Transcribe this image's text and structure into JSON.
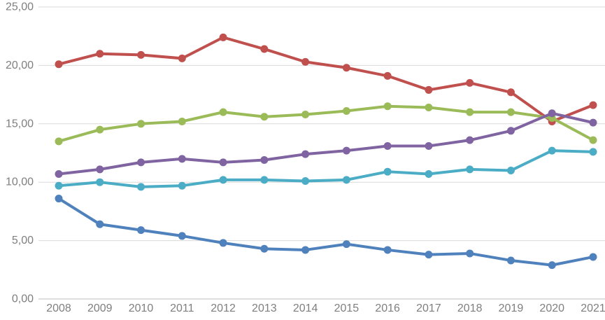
{
  "chart_data": {
    "type": "line",
    "title": "",
    "xlabel": "",
    "ylabel": "",
    "categories": [
      "2008",
      "2009",
      "2010",
      "2011",
      "2012",
      "2013",
      "2014",
      "2015",
      "2016",
      "2017",
      "2018",
      "2019",
      "2020",
      "2021"
    ],
    "series": [
      {
        "name": "blue",
        "color": "#4F81BD",
        "values": [
          8.6,
          6.4,
          5.9,
          5.4,
          4.8,
          4.3,
          4.2,
          4.7,
          4.2,
          3.8,
          3.9,
          3.3,
          2.9,
          3.6
        ]
      },
      {
        "name": "red",
        "color": "#C0504D",
        "values": [
          20.1,
          21.0,
          20.9,
          20.6,
          22.4,
          21.4,
          20.3,
          19.8,
          19.1,
          17.9,
          18.5,
          17.7,
          15.2,
          16.6
        ]
      },
      {
        "name": "green",
        "color": "#9BBB59",
        "values": [
          13.5,
          14.5,
          15.0,
          15.2,
          16.0,
          15.6,
          15.8,
          16.1,
          16.5,
          16.4,
          16.0,
          16.0,
          15.5,
          13.6
        ]
      },
      {
        "name": "purple",
        "color": "#8064A2",
        "values": [
          10.7,
          11.1,
          11.7,
          12.0,
          11.7,
          11.9,
          12.4,
          12.7,
          13.1,
          13.1,
          13.6,
          14.4,
          15.9,
          15.1
        ]
      },
      {
        "name": "cyan",
        "color": "#4BACC6",
        "values": [
          9.7,
          10.0,
          9.6,
          9.7,
          10.2,
          10.2,
          10.1,
          10.2,
          10.9,
          10.7,
          11.1,
          11.0,
          12.7,
          12.6
        ]
      }
    ],
    "ylim": [
      0,
      25
    ],
    "ytick_step": 5,
    "ytick_values": [
      0,
      5,
      10,
      15,
      20,
      25
    ],
    "ytick_labels": [
      "0,00",
      "5,00",
      "10,00",
      "15,00",
      "20,00",
      "25,00"
    ],
    "grid": true,
    "legend": "none",
    "style": {
      "gridline_color": "#d9d9d9",
      "axis_line_color": "#bfbfbf",
      "tick_label_color": "#7f7f7f",
      "background": "#ffffff",
      "line_width": 4,
      "marker_radius": 5.5,
      "tick_font_size": 16
    }
  }
}
